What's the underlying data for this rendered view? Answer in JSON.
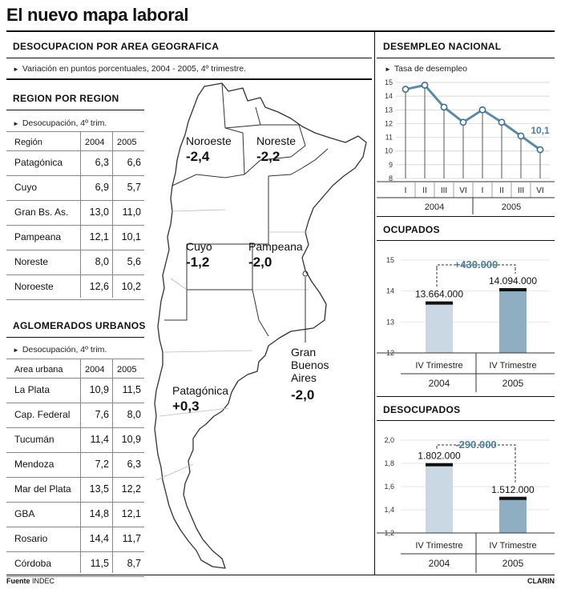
{
  "title": "El nuevo mapa laboral",
  "geo": {
    "heading": "DESOCUPACION POR AREA GEOGRAFICA",
    "note": "Variación en puntos porcentuales, 2004 - 2005, 4º trimestre."
  },
  "region": {
    "heading": "REGION POR REGION",
    "note": "Desocupación, 4º trim.",
    "col_label": "Región",
    "col_2004": "2004",
    "col_2005": "2005",
    "rows": [
      {
        "name": "Patagónica",
        "v2004": "6,3",
        "v2005": "6,6"
      },
      {
        "name": "Cuyo",
        "v2004": "6,9",
        "v2005": "5,7"
      },
      {
        "name": "Gran Bs. As.",
        "v2004": "13,0",
        "v2005": "11,0"
      },
      {
        "name": "Pampeana",
        "v2004": "12,1",
        "v2005": "10,1"
      },
      {
        "name": "Noreste",
        "v2004": "8,0",
        "v2005": "5,6"
      },
      {
        "name": "Noroeste",
        "v2004": "12,6",
        "v2005": "10,2"
      }
    ]
  },
  "urban": {
    "heading": "AGLOMERADOS URBANOS",
    "note": "Desocupación, 4º trim.",
    "col_label": "Area urbana",
    "col_2004": "2004",
    "col_2005": "2005",
    "rows": [
      {
        "name": "La Plata",
        "v2004": "10,9",
        "v2005": "11,5"
      },
      {
        "name": "Cap. Federal",
        "v2004": "7,6",
        "v2005": "8,0"
      },
      {
        "name": "Tucumán",
        "v2004": "11,4",
        "v2005": "10,9"
      },
      {
        "name": "Mendoza",
        "v2004": "7,2",
        "v2005": "6,3"
      },
      {
        "name": "Mar del Plata",
        "v2004": "13,5",
        "v2005": "12,2"
      },
      {
        "name": "GBA",
        "v2004": "14,8",
        "v2005": "12,1"
      },
      {
        "name": "Rosario",
        "v2004": "14,4",
        "v2005": "11,7"
      },
      {
        "name": "Córdoba",
        "v2004": "11,5",
        "v2005": "8,7"
      }
    ]
  },
  "map": {
    "regions": [
      {
        "name": "Noroeste",
        "value": "-2,4"
      },
      {
        "name": "Noreste",
        "value": "-2,2"
      },
      {
        "name": "Cuyo",
        "value": "-1,2"
      },
      {
        "name": "Pampeana",
        "value": "-2,0"
      },
      {
        "name": "Patagónica",
        "value": "+0,3"
      }
    ],
    "gba_line1": "Gran",
    "gba_line2": "Buenos",
    "gba_line3": "Aires",
    "gba_value": "-2,0"
  },
  "footer": {
    "source_label": "Fuente",
    "source": "INDEC",
    "credit": "CLARIN"
  },
  "chart_data": [
    {
      "type": "line",
      "title": "DESEMPLEO NACIONAL",
      "ylabel": "Tasa de desempleo",
      "ylim": [
        8,
        15
      ],
      "yticks": [
        "8",
        "9",
        "10",
        "11",
        "12",
        "13",
        "14",
        "15"
      ],
      "categories": [
        "I",
        "II",
        "III",
        "VI",
        "I",
        "II",
        "III",
        "VI"
      ],
      "groups": [
        "2004",
        "2005"
      ],
      "values": [
        14.5,
        14.8,
        13.2,
        12.1,
        13.0,
        12.1,
        11.1,
        10.1
      ],
      "annotation": "10,1"
    },
    {
      "type": "bar",
      "title": "OCUPADOS",
      "ylim": [
        12,
        15
      ],
      "yticks": [
        "12",
        "13",
        "14",
        "15"
      ],
      "categories": [
        "IV Trimestre",
        "IV Trimestre"
      ],
      "groups": [
        "2004",
        "2005"
      ],
      "values": [
        13.664,
        14.094
      ],
      "labels": [
        "13.664.000",
        "14.094.000"
      ],
      "annotation": "+430.000"
    },
    {
      "type": "bar",
      "title": "DESOCUPADOS",
      "ylim": [
        1.2,
        2.0
      ],
      "yticks": [
        "1,2",
        "1,4",
        "1,6",
        "1,8",
        "2,0"
      ],
      "categories": [
        "IV Trimestre",
        "IV Trimestre"
      ],
      "groups": [
        "2004",
        "2005"
      ],
      "values": [
        1.802,
        1.512
      ],
      "labels": [
        "1.802.000",
        "1.512.000"
      ],
      "annotation": "-290.000"
    }
  ]
}
